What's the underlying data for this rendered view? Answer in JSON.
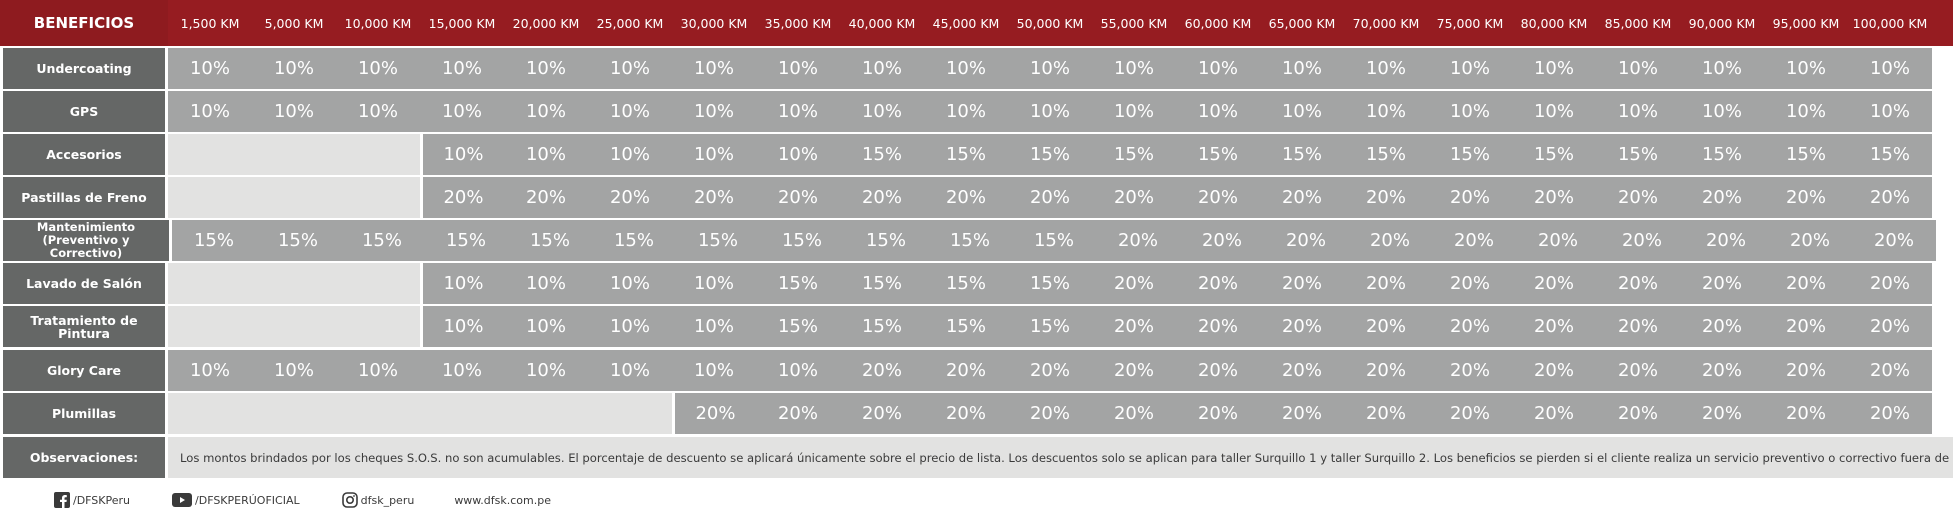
{
  "header": {
    "title": "BENEFICIOS",
    "km_labels": [
      "1,500 KM",
      "5,000 KM",
      "10,000 KM",
      "15,000 KM",
      "20,000 KM",
      "25,000 KM",
      "30,000 KM",
      "35,000 KM",
      "40,000 KM",
      "45,000 KM",
      "50,000 KM",
      "55,000 KM",
      "60,000 KM",
      "65,000 KM",
      "70,000 KM",
      "75,000 KM",
      "80,000 KM",
      "85,000 KM",
      "90,000 KM",
      "95,000 KM",
      "100,000 KM"
    ]
  },
  "rows": [
    {
      "label": "Undercoating",
      "cells": [
        "10%",
        "10%",
        "10%",
        "10%",
        "10%",
        "10%",
        "10%",
        "10%",
        "10%",
        "10%",
        "10%",
        "10%",
        "10%",
        "10%",
        "10%",
        "10%",
        "10%",
        "10%",
        "10%",
        "10%",
        "10%"
      ]
    },
    {
      "label": "GPS",
      "cells": [
        "10%",
        "10%",
        "10%",
        "10%",
        "10%",
        "10%",
        "10%",
        "10%",
        "10%",
        "10%",
        "10%",
        "10%",
        "10%",
        "10%",
        "10%",
        "10%",
        "10%",
        "10%",
        "10%",
        "10%",
        "10%"
      ]
    },
    {
      "label": "Accesorios",
      "cells": [
        "",
        "",
        "",
        "10%",
        "10%",
        "10%",
        "10%",
        "10%",
        "15%",
        "15%",
        "15%",
        "15%",
        "15%",
        "15%",
        "15%",
        "15%",
        "15%",
        "15%",
        "15%",
        "15%",
        "15%"
      ]
    },
    {
      "label": "Pastillas de Freno",
      "cells": [
        "",
        "",
        "",
        "20%",
        "20%",
        "20%",
        "20%",
        "20%",
        "20%",
        "20%",
        "20%",
        "20%",
        "20%",
        "20%",
        "20%",
        "20%",
        "20%",
        "20%",
        "20%",
        "20%",
        "20%"
      ]
    },
    {
      "label": "Mantenimiento (Preventivo y Correctivo)",
      "cells": [
        "15%",
        "15%",
        "15%",
        "15%",
        "15%",
        "15%",
        "15%",
        "15%",
        "15%",
        "15%",
        "15%",
        "20%",
        "20%",
        "20%",
        "20%",
        "20%",
        "20%",
        "20%",
        "20%",
        "20%",
        "20%"
      ]
    },
    {
      "label": "Lavado de Salón",
      "cells": [
        "",
        "",
        "",
        "10%",
        "10%",
        "10%",
        "10%",
        "15%",
        "15%",
        "15%",
        "15%",
        "20%",
        "20%",
        "20%",
        "20%",
        "20%",
        "20%",
        "20%",
        "20%",
        "20%",
        "20%"
      ]
    },
    {
      "label": "Tratamiento de Pintura",
      "cells": [
        "",
        "",
        "",
        "10%",
        "10%",
        "10%",
        "10%",
        "15%",
        "15%",
        "15%",
        "15%",
        "20%",
        "20%",
        "20%",
        "20%",
        "20%",
        "20%",
        "20%",
        "20%",
        "20%",
        "20%"
      ]
    },
    {
      "label": "Glory Care",
      "cells": [
        "10%",
        "10%",
        "10%",
        "10%",
        "10%",
        "10%",
        "10%",
        "10%",
        "20%",
        "20%",
        "20%",
        "20%",
        "20%",
        "20%",
        "20%",
        "20%",
        "20%",
        "20%",
        "20%",
        "20%",
        "20%"
      ]
    },
    {
      "label": "Plumillas",
      "cells": [
        "",
        "",
        "",
        "",
        "",
        "",
        "20%",
        "20%",
        "20%",
        "20%",
        "20%",
        "20%",
        "20%",
        "20%",
        "20%",
        "20%",
        "20%",
        "20%",
        "20%",
        "20%",
        "20%"
      ]
    }
  ],
  "observaciones": {
    "label": "Observaciones:",
    "text": "Los montos brindados por los cheques S.O.S. no son acumulables. El porcentaje de descuento se aplicará únicamente sobre el precio de lista. Los descuentos solo se aplican para taller Surquillo 1 y taller Surquillo 2. Los beneficios se pierden si el cliente realiza un servicio preventivo o correctivo fuera de la red DFSK."
  },
  "footer": {
    "facebook": "/DFSKPeru",
    "youtube": "/DFSKPERÚOFICIAL",
    "instagram": "dfsk_peru",
    "website": "www.dfsk.com.pe"
  },
  "colors": {
    "header_red": "#961c21",
    "label_gray": "#656766",
    "cell_gray": "#a3a4a4",
    "empty_gray": "#e2e2e1"
  }
}
